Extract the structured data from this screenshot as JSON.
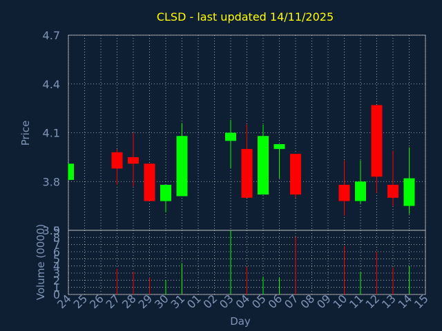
{
  "title": "CLSD - last updated 14/11/2025",
  "colors": {
    "background": "#0f1f33",
    "plot": "#0f1f33",
    "title": "#ffff00",
    "axis_text": "#7f95b8",
    "grid": "#c8c8c8",
    "up": "#00ff00",
    "down": "#ff0000"
  },
  "chart_data": [
    {
      "type": "candlestick",
      "ylabel": "Price",
      "ylim": [
        3.5,
        4.7
      ],
      "yticks": [
        "3.5",
        "3.8",
        "4.1",
        "4.4",
        "4.7"
      ],
      "grid": true,
      "categories": [
        "24",
        "25",
        "26",
        "27",
        "28",
        "29",
        "30",
        "31",
        "01",
        "02",
        "03",
        "04",
        "05",
        "06",
        "07",
        "08",
        "09",
        "10",
        "11",
        "12",
        "13",
        "14",
        "15"
      ],
      "candles": [
        {
          "day": "24",
          "open": 3.81,
          "close": 3.91,
          "high": 3.91,
          "low": 3.81
        },
        {
          "day": "27",
          "open": 3.98,
          "close": 3.88,
          "high": 4.0,
          "low": 3.78
        },
        {
          "day": "28",
          "open": 3.95,
          "close": 3.91,
          "high": 4.1,
          "low": 3.77
        },
        {
          "day": "29",
          "open": 3.91,
          "close": 3.68,
          "high": 3.91,
          "low": 3.68
        },
        {
          "day": "30",
          "open": 3.68,
          "close": 3.78,
          "high": 3.78,
          "low": 3.61
        },
        {
          "day": "31",
          "open": 3.71,
          "close": 4.08,
          "high": 4.16,
          "low": 3.71
        },
        {
          "day": "03",
          "open": 4.05,
          "close": 4.1,
          "high": 4.18,
          "low": 3.88
        },
        {
          "day": "04",
          "open": 4.0,
          "close": 3.7,
          "high": 4.15,
          "low": 3.7
        },
        {
          "day": "05",
          "open": 3.72,
          "close": 4.08,
          "high": 4.15,
          "low": 3.72
        },
        {
          "day": "06",
          "open": 4.0,
          "close": 4.03,
          "high": 4.03,
          "low": 3.82
        },
        {
          "day": "07",
          "open": 3.97,
          "close": 3.72,
          "high": 3.97,
          "low": 3.7
        },
        {
          "day": "10",
          "open": 3.78,
          "close": 3.68,
          "high": 3.93,
          "low": 3.59
        },
        {
          "day": "11",
          "open": 3.68,
          "close": 3.8,
          "high": 3.93,
          "low": 3.66
        },
        {
          "day": "12",
          "open": 4.27,
          "close": 3.83,
          "high": 4.27,
          "low": 3.73
        },
        {
          "day": "13",
          "open": 3.78,
          "close": 3.7,
          "high": 3.99,
          "low": 3.65
        },
        {
          "day": "14",
          "open": 3.65,
          "close": 3.82,
          "high": 4.01,
          "low": 3.6
        }
      ]
    },
    {
      "type": "bar",
      "xlabel": "Day",
      "ylabel": "Volume (0000)",
      "ylim": [
        0,
        9
      ],
      "yticks": [
        "0",
        "1",
        "2",
        "3",
        "4",
        "5",
        "6",
        "7",
        "8",
        "9"
      ],
      "grid": true,
      "volumes": [
        {
          "day": "27",
          "value": 3.6,
          "direction": "down"
        },
        {
          "day": "28",
          "value": 3.2,
          "direction": "down"
        },
        {
          "day": "29",
          "value": 2.4,
          "direction": "down"
        },
        {
          "day": "30",
          "value": 2.0,
          "direction": "up"
        },
        {
          "day": "31",
          "value": 4.4,
          "direction": "up"
        },
        {
          "day": "03",
          "value": 9.0,
          "direction": "up"
        },
        {
          "day": "04",
          "value": 3.9,
          "direction": "down"
        },
        {
          "day": "05",
          "value": 2.5,
          "direction": "up"
        },
        {
          "day": "06",
          "value": 2.4,
          "direction": "up"
        },
        {
          "day": "07",
          "value": 8.1,
          "direction": "down"
        },
        {
          "day": "10",
          "value": 6.8,
          "direction": "down"
        },
        {
          "day": "11",
          "value": 3.2,
          "direction": "up"
        },
        {
          "day": "12",
          "value": 6.0,
          "direction": "down"
        },
        {
          "day": "13",
          "value": 3.8,
          "direction": "down"
        },
        {
          "day": "14",
          "value": 4.0,
          "direction": "up"
        }
      ]
    }
  ]
}
